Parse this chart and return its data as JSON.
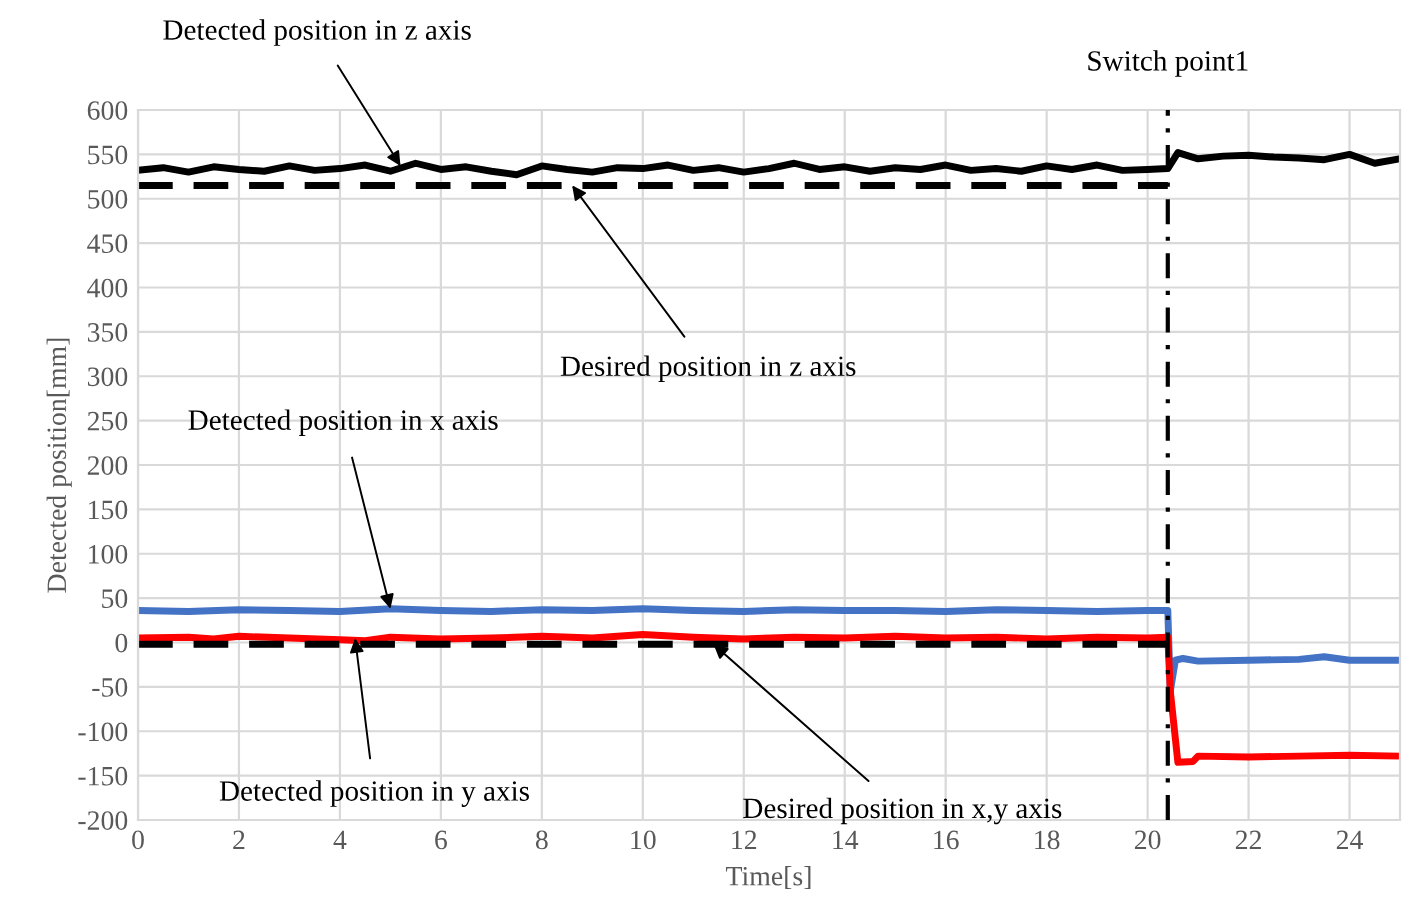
{
  "chart_data": {
    "type": "line",
    "xlabel": "Time[s]",
    "ylabel": "Detected position[mm]",
    "xlim": [
      0,
      25
    ],
    "xticks": [
      0,
      2,
      4,
      6,
      8,
      10,
      12,
      14,
      16,
      18,
      20,
      22,
      24
    ],
    "ylim": [
      -200,
      600
    ],
    "yticks": [
      -200,
      -150,
      -100,
      -50,
      0,
      50,
      100,
      150,
      200,
      250,
      300,
      350,
      400,
      450,
      500,
      550,
      600
    ],
    "grid": true,
    "legend": false,
    "marker": "none",
    "series": [
      {
        "color": "#000000",
        "line_style": "solid",
        "x": [
          0,
          0.5,
          1,
          1.5,
          2,
          2.5,
          3,
          3.5,
          4,
          4.5,
          5,
          5.5,
          6,
          6.5,
          7,
          7.5,
          8,
          8.5,
          9,
          9.5,
          10,
          10.5,
          11,
          11.5,
          12,
          12.5,
          13,
          13.5,
          14,
          14.5,
          15,
          15.5,
          16,
          16.5,
          17,
          17.5,
          18,
          18.5,
          19,
          19.5,
          20,
          20.4,
          20.6,
          21,
          21.5,
          22,
          22.5,
          23,
          23.5,
          24,
          24.5,
          25
        ],
        "values": [
          532,
          535,
          530,
          536,
          533,
          531,
          537,
          532,
          534,
          538,
          531,
          540,
          533,
          536,
          531,
          527,
          537,
          533,
          530,
          535,
          534,
          538,
          532,
          535,
          530,
          534,
          540,
          533,
          536,
          531,
          535,
          533,
          538,
          532,
          534,
          531,
          537,
          533,
          538,
          532,
          533,
          534,
          552,
          545,
          548,
          549,
          547,
          546,
          544,
          550,
          540,
          545
        ]
      },
      {
        "color": "#4472c4",
        "line_style": "solid",
        "x": [
          0,
          1,
          2,
          3,
          4,
          5,
          6,
          7,
          8,
          9,
          10,
          11,
          12,
          13,
          14,
          15,
          16,
          17,
          18,
          19,
          20,
          20.4,
          20.45,
          20.55,
          20.7,
          21,
          22,
          23,
          23.5,
          24,
          25
        ],
        "values": [
          36,
          35,
          37,
          36,
          35,
          38,
          36,
          35,
          37,
          36,
          38,
          36,
          35,
          37,
          36,
          36,
          35,
          37,
          36,
          35,
          36,
          36,
          -55,
          -20,
          -18,
          -21,
          -20,
          -19,
          -16,
          -20,
          -20
        ]
      },
      {
        "color": "#ff0000",
        "line_style": "solid",
        "x": [
          0,
          1,
          1.5,
          2,
          3,
          4,
          4.5,
          5,
          6,
          7,
          8,
          9,
          10,
          11,
          12,
          13,
          14,
          15,
          16,
          17,
          18,
          19,
          20,
          20.4,
          20.45,
          20.6,
          20.9,
          21,
          22,
          23,
          24,
          25
        ],
        "values": [
          5,
          6,
          4,
          7,
          5,
          3,
          2,
          6,
          4,
          5,
          7,
          5,
          9,
          6,
          4,
          6,
          5,
          7,
          5,
          6,
          4,
          6,
          5,
          6,
          -55,
          -135,
          -134,
          -128,
          -129,
          -128,
          -127,
          -128
        ]
      },
      {
        "color": "#000000",
        "line_style": "dashed",
        "x": [
          0,
          20.4
        ],
        "values": [
          515,
          515
        ]
      },
      {
        "color": "#000000",
        "line_style": "dashed",
        "x": [
          0,
          20.4
        ],
        "values": [
          -2,
          -2
        ]
      }
    ],
    "ref_lines": [
      {
        "axis": "x",
        "value": 20.4,
        "label": "Switch point1",
        "color": "#000000",
        "line_style": "dashdot"
      }
    ],
    "annotations": [
      {
        "text": "Detected position in z axis",
        "x": 5.2,
        "y": 537
      },
      {
        "text": "Desired position in z axis",
        "x": 8.6,
        "y": 515
      },
      {
        "text": "Detected position in x axis",
        "x": 5.0,
        "y": 38
      },
      {
        "text": "Detected position in y axis",
        "x": 4.3,
        "y": 5
      },
      {
        "text": "Desired position in x,y axis",
        "x": 11.4,
        "y": -2
      }
    ]
  }
}
